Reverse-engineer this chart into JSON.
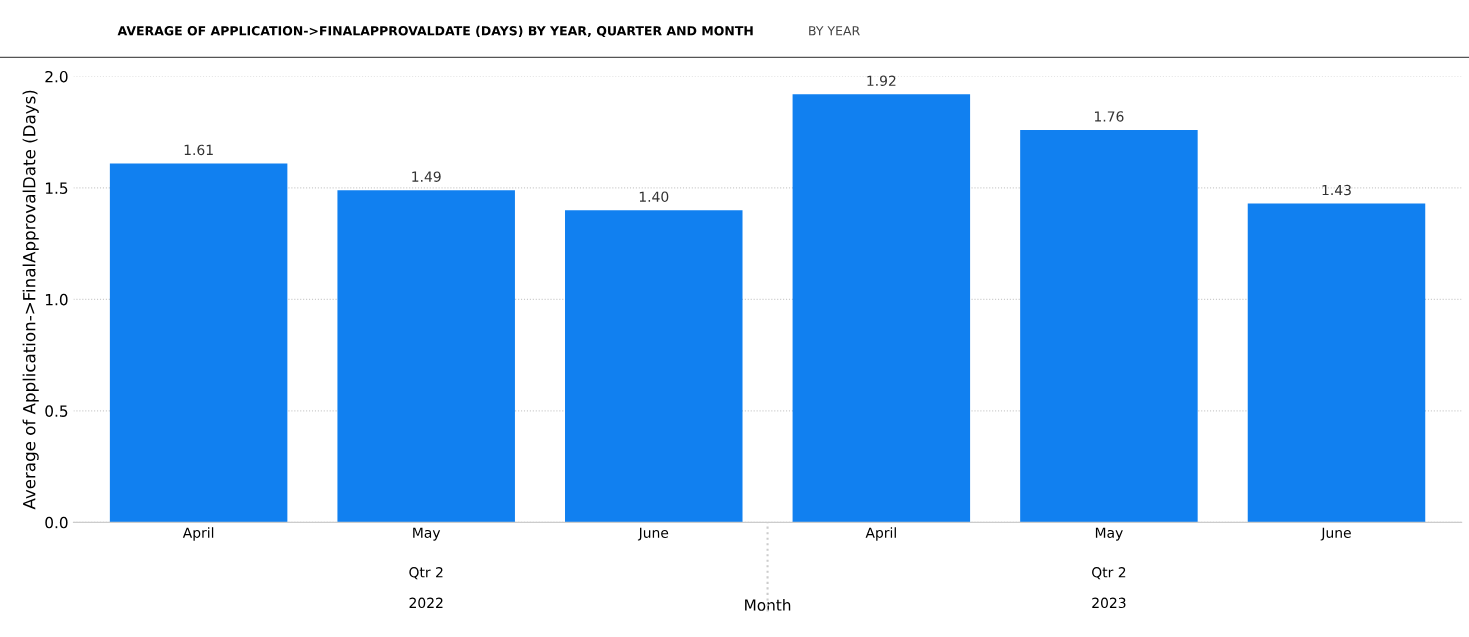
{
  "chart_data": {
    "type": "bar",
    "title": "AVERAGE OF APPLICATION->FINALAPPROVALDATE (DAYS) BY YEAR, QUARTER AND MONTH",
    "subtitle": "BY YEAR",
    "xlabel": "Month",
    "ylabel": "Average of Application->FinalApprovalDate (Days)",
    "categories": [
      "April",
      "May",
      "June",
      "April",
      "May",
      "June"
    ],
    "values": [
      1.61,
      1.49,
      1.4,
      1.92,
      1.76,
      1.43
    ],
    "value_labels": [
      "1.61",
      "1.49",
      "1.40",
      "1.92",
      "1.76",
      "1.43"
    ],
    "color": "#1180f0",
    "ylim": [
      0,
      2.0
    ],
    "yticks": [
      {
        "value": 0,
        "label": "0.0"
      },
      {
        "value": 0.5,
        "label": "0.5"
      },
      {
        "value": 1.0,
        "label": "1.0"
      },
      {
        "value": 1.5,
        "label": "1.5"
      },
      {
        "value": 2.0,
        "label": "2.0"
      }
    ],
    "grid": "y",
    "annotations": [
      "Qtr 2",
      "Qtr 2",
      "2022",
      "2023"
    ]
  }
}
